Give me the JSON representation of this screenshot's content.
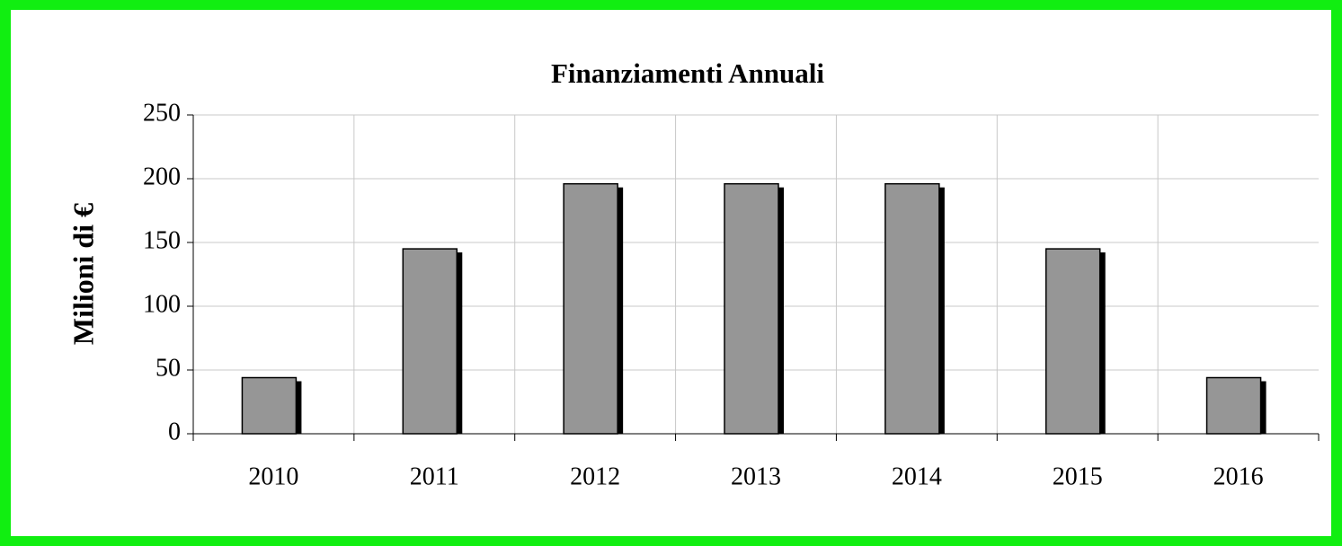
{
  "chart_data": {
    "type": "bar",
    "title": "Finanziamenti Annuali",
    "y_label": "Milioni di €",
    "categories": [
      "2010",
      "2011",
      "2012",
      "2013",
      "2014",
      "2015",
      "2016"
    ],
    "values": [
      44,
      145,
      196,
      196,
      196,
      145,
      44
    ],
    "color": "#969696",
    "ylim": [
      0,
      250
    ],
    "yticks": [
      0,
      50,
      100,
      150,
      200,
      250
    ],
    "grid": true
  }
}
